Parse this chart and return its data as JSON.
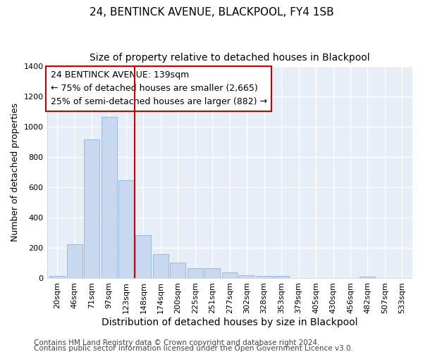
{
  "title1": "24, BENTINCK AVENUE, BLACKPOOL, FY4 1SB",
  "title2": "Size of property relative to detached houses in Blackpool",
  "xlabel": "Distribution of detached houses by size in Blackpool",
  "ylabel": "Number of detached properties",
  "categories": [
    "20sqm",
    "46sqm",
    "71sqm",
    "97sqm",
    "123sqm",
    "148sqm",
    "174sqm",
    "200sqm",
    "225sqm",
    "251sqm",
    "277sqm",
    "302sqm",
    "328sqm",
    "353sqm",
    "379sqm",
    "405sqm",
    "430sqm",
    "456sqm",
    "482sqm",
    "507sqm",
    "533sqm"
  ],
  "values": [
    15,
    225,
    920,
    1065,
    650,
    285,
    158,
    105,
    68,
    65,
    38,
    22,
    18,
    15,
    0,
    0,
    0,
    0,
    10,
    0,
    0
  ],
  "bar_color": "#c8d8ee",
  "bar_edge_color": "#9dbede",
  "vline_x": 4.5,
  "vline_color": "#cc0000",
  "annotation_line1": "24 BENTINCK AVENUE: 139sqm",
  "annotation_line2": "← 75% of detached houses are smaller (2,665)",
  "annotation_line3": "25% of semi-detached houses are larger (882) →",
  "annotation_box_color": "white",
  "annotation_box_edge_color": "#cc0000",
  "ylim": [
    0,
    1400
  ],
  "yticks": [
    0,
    200,
    400,
    600,
    800,
    1000,
    1200,
    1400
  ],
  "footer1": "Contains HM Land Registry data © Crown copyright and database right 2024.",
  "footer2": "Contains public sector information licensed under the Open Government Licence v3.0.",
  "bg_color": "#ffffff",
  "plot_bg_color": "#e8eef8",
  "grid_color": "#ffffff",
  "title1_fontsize": 11,
  "title2_fontsize": 10,
  "xlabel_fontsize": 10,
  "ylabel_fontsize": 9,
  "tick_fontsize": 8,
  "annot_fontsize": 9,
  "footer_fontsize": 7.5
}
